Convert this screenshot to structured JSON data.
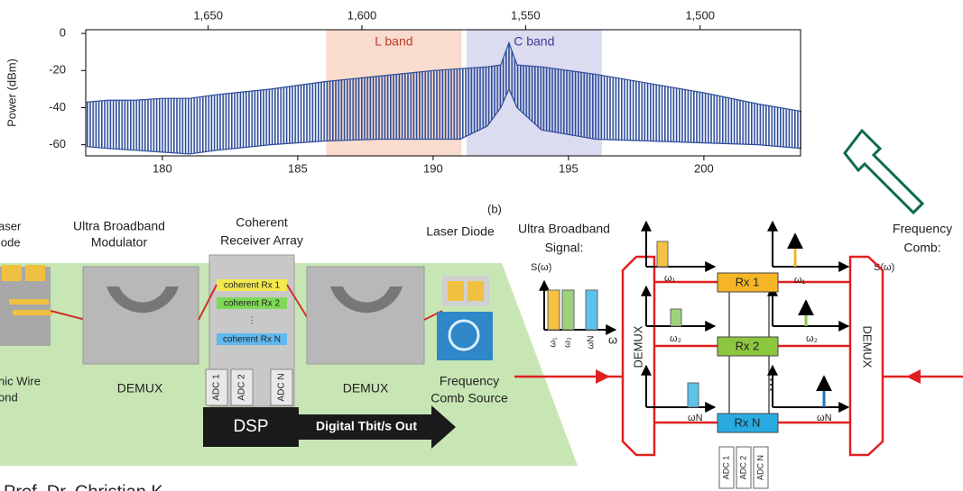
{
  "chart_data": {
    "type": "area",
    "ylabel": "Power (dBm)",
    "x": [
      177.2,
      178,
      179,
      180,
      181,
      182,
      184,
      186,
      188,
      190,
      191,
      192,
      192.5,
      192.8,
      193.1,
      194,
      196,
      198,
      200,
      202,
      203.6
    ],
    "series": [
      {
        "color": "#2e4d9a",
        "values": [
          -37,
          -36,
          -36,
          -35,
          -35,
          -33,
          -30,
          -26,
          -23,
          -20,
          -19,
          -18,
          -17,
          -5,
          -17,
          -18,
          -22,
          -27,
          -32,
          -38,
          -42
        ]
      },
      {
        "color": "#2e4d9a",
        "values": [
          -61,
          -62,
          -63,
          -64,
          -65,
          -63,
          -60,
          -58,
          -57,
          -57,
          -57,
          -50,
          -40,
          -30,
          -40,
          -52,
          -57,
          -58,
          -59,
          -60,
          -62
        ]
      }
    ],
    "xlim": [
      177.17,
      203.57
    ],
    "ylim": [
      -66,
      2
    ],
    "xticks": [
      180,
      185,
      190,
      195,
      200
    ],
    "yticks": [
      0,
      -20,
      -40,
      -60
    ],
    "x2ticks": [
      {
        "value": 1650,
        "label": "1,650"
      },
      {
        "value": 1600,
        "label": "1,600"
      },
      {
        "value": 1550,
        "label": "1,550"
      },
      {
        "value": 1500,
        "label": "1,500"
      }
    ],
    "bands": [
      {
        "label": "L band",
        "range": [
          186.05,
          191.05
        ],
        "color": "#f9dccd",
        "label_color": "#c0392b"
      },
      {
        "label": "C band",
        "range": [
          191.23,
          196.23
        ],
        "color": "#dcdcf0",
        "label_color": "#3b3b9b"
      }
    ]
  },
  "diagram_a": {
    "laser_left": [
      "aser",
      "iode"
    ],
    "modulator": [
      "Ultra Broadband",
      "Modulator"
    ],
    "receiver": [
      "Coherent",
      "Receiver Array"
    ],
    "laser_right": "Laser Diode",
    "rx": [
      "coherent Rx 1",
      "coherent Rx 2",
      "⋮",
      "coherent Rx N"
    ],
    "adc": [
      "ADC 1",
      "ADC 2",
      "ADC N"
    ],
    "demux": [
      "DEMUX",
      "DEMUX"
    ],
    "wire": [
      "nic Wire",
      "ond"
    ],
    "dsp": "DSP",
    "out": "Digital Tbit/s Out",
    "comb": [
      "Frequency",
      "Comb Source"
    ]
  },
  "diagram_b": {
    "label": "(b)",
    "signal": [
      "Ultra Broadband",
      "Signal:"
    ],
    "comb": [
      "Frequency",
      "Comb:"
    ],
    "s_axis": "S(ω)",
    "omega": "ω",
    "omegas": [
      "ω₁",
      "ω₂",
      "ωN"
    ],
    "demux": "DEMUX",
    "rx": [
      "Rx 1",
      "Rx 2",
      "Rx N"
    ],
    "adc": [
      "ADC 1",
      "ADC 2",
      "ADC N"
    ],
    "dots": "⋮"
  },
  "footer": "Prof. Dr. Christian K"
}
